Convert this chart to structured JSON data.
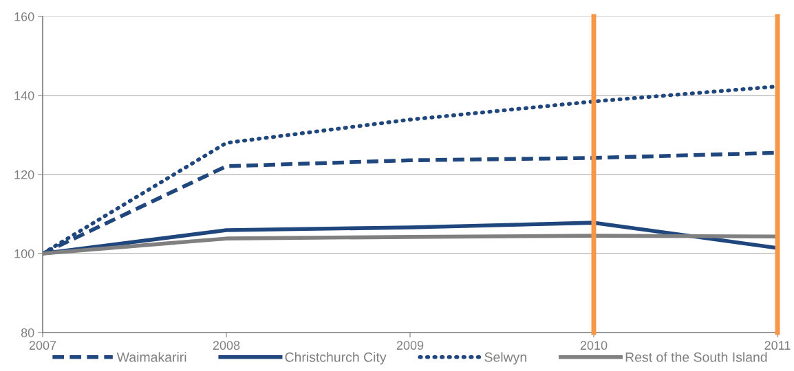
{
  "chart_data": {
    "type": "line",
    "x": [
      2007,
      2008,
      2009,
      2010,
      2011
    ],
    "series": [
      {
        "name": "Waimakariri",
        "color": "#1f477d",
        "line_style": "dashed",
        "values": [
          100,
          122.1,
          123.6,
          124.2,
          125.5
        ]
      },
      {
        "name": "Christchurch City",
        "color": "#1f477d",
        "line_style": "solid",
        "values": [
          100,
          105.9,
          106.6,
          107.8,
          101.4
        ]
      },
      {
        "name": "Selwyn",
        "color": "#1f477d",
        "line_style": "dotted",
        "values": [
          100,
          128,
          133.9,
          138.5,
          142.3
        ]
      },
      {
        "name": "Rest of the South Island",
        "color": "#808080",
        "line_style": "solid",
        "values": [
          100,
          103.8,
          104.2,
          104.5,
          104.3
        ]
      }
    ],
    "xlim": [
      2007,
      2011
    ],
    "xticks": [
      2007,
      2008,
      2009,
      2010,
      2011
    ],
    "ylim": [
      80,
      160
    ],
    "yticks": [
      80,
      100,
      120,
      140,
      160
    ],
    "ref_lines": [
      {
        "axis": "x",
        "value": 2010,
        "color": "#f79646"
      },
      {
        "axis": "x",
        "value": 2011,
        "color": "#f79646"
      }
    ],
    "grid": "y",
    "legend": "bottom",
    "marker": "none"
  }
}
